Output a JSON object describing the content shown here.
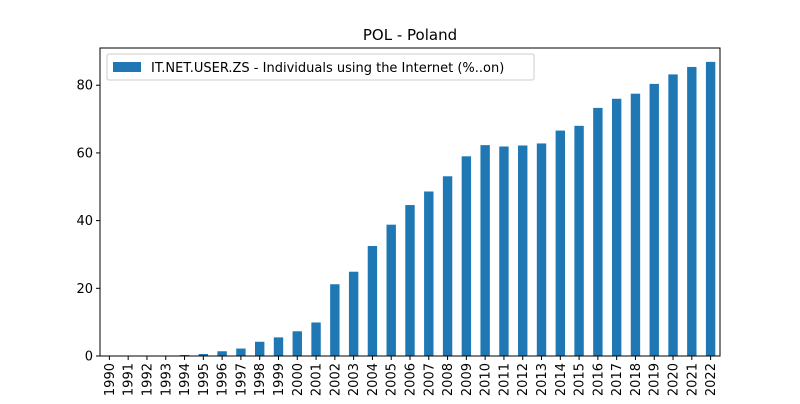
{
  "chart_data": {
    "type": "bar",
    "title": "POL - Poland",
    "xlabel": "",
    "ylabel": "",
    "legend_position": "top-left",
    "grid": false,
    "ylim": [
      0,
      91
    ],
    "yticks": [
      0,
      20,
      40,
      60,
      80
    ],
    "categories": [
      "1990",
      "1991",
      "1992",
      "1993",
      "1994",
      "1995",
      "1996",
      "1997",
      "1998",
      "1999",
      "2000",
      "2001",
      "2002",
      "2003",
      "2004",
      "2005",
      "2006",
      "2007",
      "2008",
      "2009",
      "2010",
      "2011",
      "2012",
      "2013",
      "2014",
      "2015",
      "2016",
      "2017",
      "2018",
      "2019",
      "2020",
      "2021",
      "2022"
    ],
    "series": [
      {
        "name": "IT.NET.USER.ZS - Individuals using the Internet (%..on)",
        "color": "#1f77b4",
        "values": [
          0,
          0,
          0,
          0,
          0.3,
          0.6,
          1.4,
          2.2,
          4.2,
          5.5,
          7.3,
          9.9,
          21.2,
          24.9,
          32.5,
          38.8,
          44.6,
          48.6,
          53.1,
          59.0,
          62.3,
          61.9,
          62.2,
          62.8,
          66.6,
          68.0,
          73.3,
          76.0,
          77.5,
          80.4,
          83.2,
          85.4,
          86.9
        ]
      }
    ]
  }
}
